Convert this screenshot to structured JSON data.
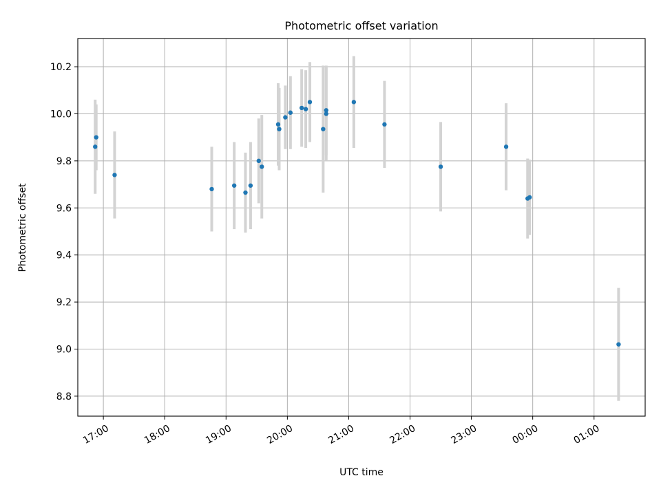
{
  "chart_data": {
    "type": "scatter",
    "title": "Photometric offset variation",
    "xlabel": "UTC time",
    "ylabel": "Photometric offset",
    "x_ticks": [
      "17:00",
      "18:00",
      "19:00",
      "20:00",
      "21:00",
      "22:00",
      "23:00",
      "00:00",
      "01:00"
    ],
    "x_tick_hours": [
      17,
      18,
      19,
      20,
      21,
      22,
      23,
      24,
      25
    ],
    "y_ticks": [
      "8.8",
      "9.0",
      "9.2",
      "9.4",
      "9.6",
      "9.8",
      "10.0",
      "10.2"
    ],
    "y_tick_values": [
      8.8,
      9.0,
      9.2,
      9.4,
      9.6,
      9.8,
      10.0,
      10.2
    ],
    "xlim": [
      "16:35",
      "01:50"
    ],
    "ylim": [
      8.715,
      10.32
    ],
    "grid": true,
    "point_color": "#1f77b4",
    "errorbar_color": "#d3d3d3",
    "points": [
      {
        "x": "16:52",
        "y": 9.86,
        "err": 0.2
      },
      {
        "x": "16:53",
        "y": 9.9,
        "err": 0.14
      },
      {
        "x": "17:11",
        "y": 9.74,
        "err": 0.185
      },
      {
        "x": "18:46",
        "y": 9.68,
        "err": 0.18
      },
      {
        "x": "19:08",
        "y": 9.695,
        "err": 0.185
      },
      {
        "x": "19:19",
        "y": 9.665,
        "err": 0.17
      },
      {
        "x": "19:24",
        "y": 9.695,
        "err": 0.185
      },
      {
        "x": "19:32",
        "y": 9.8,
        "err": 0.18
      },
      {
        "x": "19:35",
        "y": 9.775,
        "err": 0.22
      },
      {
        "x": "19:51",
        "y": 9.955,
        "err": 0.175
      },
      {
        "x": "19:52",
        "y": 9.935,
        "err": 0.175
      },
      {
        "x": "19:58",
        "y": 9.985,
        "err": 0.135
      },
      {
        "x": "20:03",
        "y": 10.005,
        "err": 0.155
      },
      {
        "x": "20:14",
        "y": 10.025,
        "err": 0.165
      },
      {
        "x": "20:18",
        "y": 10.02,
        "err": 0.165
      },
      {
        "x": "20:22",
        "y": 10.05,
        "err": 0.17
      },
      {
        "x": "20:35",
        "y": 9.935,
        "err": 0.27
      },
      {
        "x": "20:38",
        "y": 10.0,
        "err": 0.2
      },
      {
        "x": "20:38",
        "y": 10.015,
        "err": 0.19
      },
      {
        "x": "21:05",
        "y": 10.05,
        "err": 0.195
      },
      {
        "x": "21:35",
        "y": 9.955,
        "err": 0.185
      },
      {
        "x": "22:30",
        "y": 9.775,
        "err": 0.19
      },
      {
        "x": "23:34",
        "y": 9.86,
        "err": 0.185
      },
      {
        "x": "23:55",
        "y": 9.64,
        "err": 0.17
      },
      {
        "x": "23:57",
        "y": 9.645,
        "err": 0.16
      },
      {
        "x": "01:24",
        "y": 9.02,
        "err": 0.24
      }
    ]
  }
}
